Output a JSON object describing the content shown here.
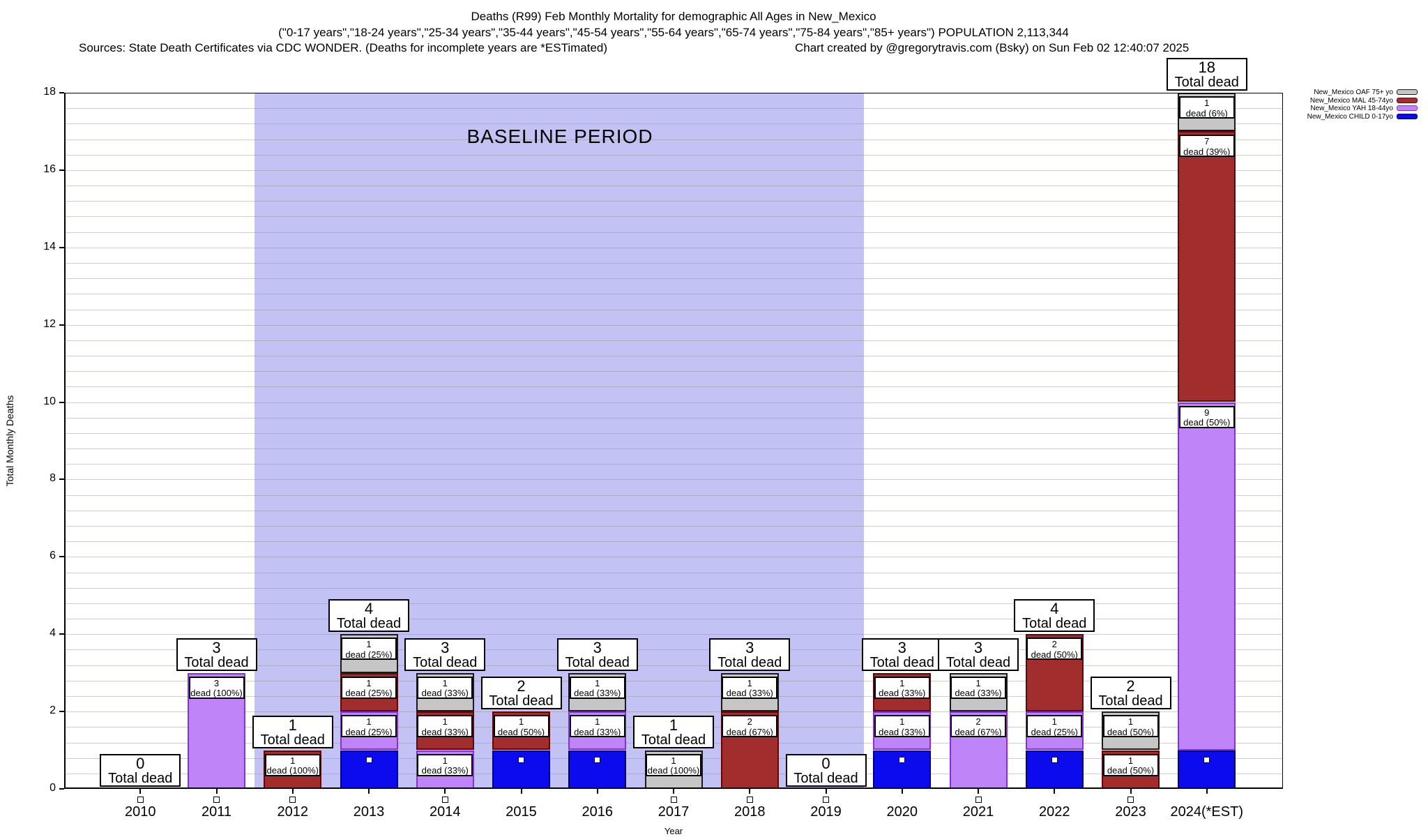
{
  "header": {
    "line1": "Deaths (R99) Feb Monthly Mortality for demographic All Ages in New_Mexico",
    "line2": "(\"0-17 years\",\"18-24 years\",\"25-34 years\",\"35-44 years\",\"45-54 years\",\"55-64 years\",\"65-74 years\",\"75-84 years\",\"85+ years\") POPULATION 2,113,344",
    "sources": "Sources: State Death Certificates via CDC WONDER. (Deaths for incomplete years are *ESTimated)",
    "credit": "Chart created by @gregorytravis.com (Bsky) on Sun Feb 02 12:40:07 2025"
  },
  "chart_data": {
    "type": "stacked-bar",
    "title": "Deaths (R99) Feb Monthly Mortality for demographic All Ages in New_Mexico",
    "ylabel": "Total Monthly Deaths",
    "xlabel": "Year",
    "ylim": [
      0,
      18
    ],
    "yticks": [
      "0",
      "2",
      "4",
      "6",
      "8",
      "10",
      "12",
      "14",
      "16",
      "18"
    ],
    "y_minor_step": 0.4,
    "grid": true,
    "baseline": {
      "label": "BASELINE PERIOD",
      "from_year": 2011.5,
      "to_year": 2019.5,
      "band_color": "#c2c2f5"
    },
    "legend_position": "top-right-outside",
    "legend_order": [
      "OAF",
      "MAL",
      "YAH",
      "CHILD"
    ],
    "series_styles": {
      "OAF": {
        "legend": "New_Mexico OAF 75+ yo",
        "fill": "#c6c6c6",
        "border": "#1a1a1a"
      },
      "MAL": {
        "legend": "New_Mexico MAL 45-74yo",
        "fill": "#a22d2d",
        "border": "#5a0a0a"
      },
      "YAH": {
        "legend": "New_Mexico YAH 18-44yo",
        "fill": "#bf84f7",
        "border": "#8830d8"
      },
      "CHILD": {
        "legend": "New_Mexico CHILD 0-17yo",
        "fill": "#0b0bee",
        "border": "#000070"
      }
    },
    "total_label_suffix": "Total dead",
    "bars": [
      {
        "year": "2010",
        "total": 0,
        "segments": []
      },
      {
        "year": "2011",
        "total": 3,
        "segments": [
          {
            "series": "YAH",
            "value": 3,
            "label": "3",
            "pct": "dead (100%)"
          }
        ]
      },
      {
        "year": "2012",
        "total": 1,
        "segments": [
          {
            "series": "MAL",
            "value": 1,
            "label": "1",
            "pct": "dead (100%)"
          }
        ]
      },
      {
        "year": "2013",
        "total": 4,
        "segments": [
          {
            "series": "CHILD",
            "value": 1
          },
          {
            "series": "YAH",
            "value": 1,
            "label": "1",
            "pct": "dead (25%)"
          },
          {
            "series": "MAL",
            "value": 1,
            "label": "1",
            "pct": "dead (25%)"
          },
          {
            "series": "OAF",
            "value": 1,
            "label": "1",
            "pct": "dead (25%)"
          }
        ]
      },
      {
        "year": "2014",
        "total": 3,
        "segments": [
          {
            "series": "YAH",
            "value": 1,
            "label": "1",
            "pct": "dead (33%)"
          },
          {
            "series": "MAL",
            "value": 1,
            "label": "1",
            "pct": "dead (33%)"
          },
          {
            "series": "OAF",
            "value": 1,
            "label": "1",
            "pct": "dead (33%)"
          }
        ]
      },
      {
        "year": "2015",
        "total": 2,
        "segments": [
          {
            "series": "CHILD",
            "value": 1
          },
          {
            "series": "MAL",
            "value": 1,
            "label": "1",
            "pct": "dead (50%)"
          }
        ]
      },
      {
        "year": "2016",
        "total": 3,
        "segments": [
          {
            "series": "CHILD",
            "value": 1
          },
          {
            "series": "YAH",
            "value": 1,
            "label": "1",
            "pct": "dead (33%)"
          },
          {
            "series": "OAF",
            "value": 1,
            "label": "1",
            "pct": "dead (33%)"
          }
        ]
      },
      {
        "year": "2017",
        "total": 1,
        "segments": [
          {
            "series": "OAF",
            "value": 1,
            "label": "1",
            "pct": "dead (100%)"
          }
        ]
      },
      {
        "year": "2018",
        "total": 3,
        "segments": [
          {
            "series": "MAL",
            "value": 2,
            "label": "2",
            "pct": "dead (67%)"
          },
          {
            "series": "OAF",
            "value": 1,
            "label": "1",
            "pct": "dead (33%)"
          }
        ]
      },
      {
        "year": "2019",
        "total": 0,
        "segments": []
      },
      {
        "year": "2020",
        "total": 3,
        "segments": [
          {
            "series": "CHILD",
            "value": 1
          },
          {
            "series": "YAH",
            "value": 1,
            "label": "1",
            "pct": "dead (33%)"
          },
          {
            "series": "MAL",
            "value": 1,
            "label": "1",
            "pct": "dead (33%)"
          }
        ]
      },
      {
        "year": "2021",
        "total": 3,
        "segments": [
          {
            "series": "YAH",
            "value": 2,
            "label": "2",
            "pct": "dead (67%)"
          },
          {
            "series": "OAF",
            "value": 1,
            "label": "1",
            "pct": "dead (33%)"
          }
        ]
      },
      {
        "year": "2022",
        "total": 4,
        "segments": [
          {
            "series": "CHILD",
            "value": 1
          },
          {
            "series": "YAH",
            "value": 1,
            "label": "1",
            "pct": "dead (25%)"
          },
          {
            "series": "MAL",
            "value": 2,
            "label": "2",
            "pct": "dead (50%)"
          }
        ]
      },
      {
        "year": "2023",
        "total": 2,
        "segments": [
          {
            "series": "MAL",
            "value": 1,
            "label": "1",
            "pct": "dead (50%)"
          },
          {
            "series": "OAF",
            "value": 1,
            "label": "1",
            "pct": "dead (50%)"
          }
        ]
      },
      {
        "year": "2024(*EST)",
        "total": 18,
        "segments": [
          {
            "series": "CHILD",
            "value": 1
          },
          {
            "series": "YAH",
            "value": 9,
            "label": "9",
            "pct": "dead (50%)"
          },
          {
            "series": "MAL",
            "value": 7,
            "label": "7",
            "pct": "dead (39%)"
          },
          {
            "series": "OAF",
            "value": 1,
            "label": "1",
            "pct": "dead (6%)"
          }
        ]
      }
    ]
  }
}
